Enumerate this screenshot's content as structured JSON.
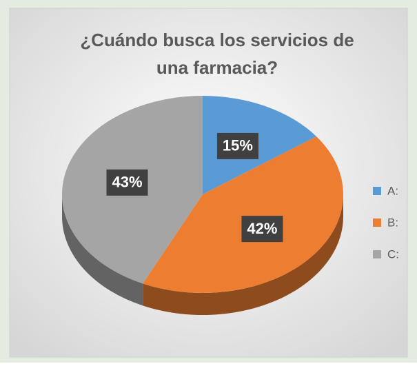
{
  "chart_data": {
    "type": "pie",
    "title": "¿Cuándo busca los servicios de una farmacia?",
    "categories": [
      "A:",
      "B:",
      "C:"
    ],
    "values": [
      15,
      42,
      43
    ],
    "value_labels": [
      "15%",
      "42%",
      "43%"
    ],
    "colors": [
      "#5b9bd5",
      "#ed7d31",
      "#a5a5a5"
    ],
    "legend": "right"
  }
}
